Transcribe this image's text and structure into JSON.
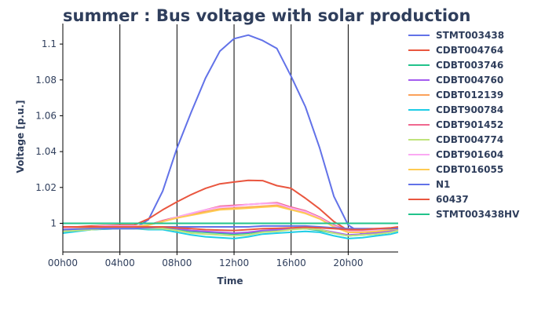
{
  "chart_data": {
    "type": "line",
    "title": "summer : Bus voltage with solar production",
    "xlabel": "Time",
    "ylabel": "Voltage [p.u.]",
    "x": [
      0,
      1,
      2,
      3,
      4,
      5,
      6,
      7,
      8,
      9,
      10,
      11,
      12,
      13,
      14,
      15,
      16,
      17,
      18,
      19,
      20,
      21,
      22,
      23,
      23.5
    ],
    "x_tick_values": [
      0,
      4,
      8,
      12,
      16,
      20
    ],
    "x_tick_labels": [
      "00h00",
      "04h00",
      "08h00",
      "12h00",
      "16h00",
      "20h00"
    ],
    "xlim": [
      0,
      23.5
    ],
    "y_tick_values": [
      1.0,
      1.02,
      1.04,
      1.06,
      1.08,
      1.1
    ],
    "y_tick_labels": [
      "1",
      "1.02",
      "1.04",
      "1.06",
      "1.08",
      "1.1"
    ],
    "ylim": [
      0.984,
      1.111
    ],
    "grid": "vertical",
    "legend_position": "right",
    "series": [
      {
        "name": "STMT003438",
        "color": "#6272e8",
        "values": [
          0.9965,
          0.9968,
          0.997,
          0.9972,
          0.9975,
          0.997,
          1.002,
          1.018,
          1.042,
          1.062,
          1.081,
          1.096,
          1.103,
          1.105,
          1.102,
          1.0975,
          1.082,
          1.065,
          1.042,
          1.015,
          0.999,
          0.994,
          0.995,
          0.996,
          0.997
        ]
      },
      {
        "name": "CDBT004764",
        "color": "#e9563f",
        "values": [
          0.9975,
          0.998,
          0.9985,
          0.9988,
          0.999,
          0.999,
          1.0025,
          1.0075,
          1.012,
          1.016,
          1.0195,
          1.022,
          1.023,
          1.024,
          1.0238,
          1.021,
          1.0195,
          1.014,
          1.008,
          1.001,
          0.996,
          0.9955,
          0.996,
          0.997,
          0.9975
        ]
      },
      {
        "name": "CDBT003746",
        "color": "#22c38b",
        "values": [
          0.9955,
          0.996,
          0.9965,
          0.9968,
          0.997,
          0.997,
          0.997,
          0.9975,
          0.9965,
          0.9955,
          0.995,
          0.9945,
          0.994,
          0.9945,
          0.9955,
          0.996,
          0.997,
          0.997,
          0.996,
          0.9945,
          0.993,
          0.9935,
          0.994,
          0.995,
          0.996
        ]
      },
      {
        "name": "CDBT004760",
        "color": "#a45cf0",
        "values": [
          0.996,
          0.9965,
          0.997,
          0.9972,
          0.9975,
          0.9975,
          0.9978,
          0.998,
          0.997,
          0.996,
          0.9955,
          0.995,
          0.9945,
          0.995,
          0.996,
          0.9965,
          0.997,
          0.997,
          0.9965,
          0.995,
          0.9935,
          0.994,
          0.9945,
          0.9955,
          0.9965
        ]
      },
      {
        "name": "CDBT012139",
        "color": "#fba15a",
        "values": [
          0.9965,
          0.997,
          0.9975,
          0.998,
          0.998,
          0.998,
          0.999,
          1.001,
          1.003,
          1.005,
          1.0065,
          1.008,
          1.0085,
          1.009,
          1.0095,
          1.01,
          1.008,
          1.006,
          1.003,
          0.998,
          0.995,
          0.995,
          0.9955,
          0.9965,
          0.997
        ]
      },
      {
        "name": "CDBT900784",
        "color": "#1ecde6",
        "values": [
          0.9945,
          0.9955,
          0.9965,
          0.9968,
          0.997,
          0.997,
          0.9965,
          0.9965,
          0.995,
          0.9935,
          0.9925,
          0.992,
          0.9915,
          0.9925,
          0.994,
          0.9945,
          0.995,
          0.9955,
          0.995,
          0.993,
          0.9915,
          0.992,
          0.993,
          0.994,
          0.995
        ]
      },
      {
        "name": "CDBT901452",
        "color": "#f0688f",
        "values": [
          0.997,
          0.9975,
          0.998,
          0.9985,
          0.9985,
          0.9985,
          0.999,
          1.0015,
          1.0035,
          1.0055,
          1.0075,
          1.0095,
          1.01,
          1.0105,
          1.011,
          1.0115,
          1.009,
          1.007,
          1.0035,
          0.999,
          0.996,
          0.996,
          0.9965,
          0.997,
          0.9975
        ]
      },
      {
        "name": "CDBT004774",
        "color": "#bfe37b",
        "values": [
          0.9955,
          0.996,
          0.9965,
          0.997,
          0.997,
          0.997,
          0.997,
          0.997,
          0.996,
          0.9945,
          0.994,
          0.9935,
          0.993,
          0.9935,
          0.995,
          0.9955,
          0.9965,
          0.997,
          0.9965,
          0.9945,
          0.993,
          0.9935,
          0.994,
          0.995,
          0.996
        ]
      },
      {
        "name": "CDBT901604",
        "color": "#fba9f3",
        "values": [
          0.997,
          0.9975,
          0.998,
          0.9985,
          0.9985,
          0.9985,
          0.999,
          1.001,
          1.0035,
          1.0055,
          1.0075,
          1.009,
          1.0095,
          1.0105,
          1.011,
          1.011,
          1.0085,
          1.0065,
          1.003,
          0.9985,
          0.9955,
          0.9955,
          0.996,
          0.997,
          0.9975
        ]
      },
      {
        "name": "CDBT016055",
        "color": "#fecb52",
        "values": [
          0.9965,
          0.997,
          0.9975,
          0.998,
          0.998,
          0.998,
          0.999,
          1.001,
          1.003,
          1.0045,
          1.006,
          1.0075,
          1.008,
          1.0085,
          1.009,
          1.0095,
          1.0075,
          1.0055,
          1.0025,
          0.998,
          0.995,
          0.995,
          0.9955,
          0.9965,
          0.997
        ]
      },
      {
        "name": "N1",
        "color": "#6272e8",
        "values": [
          0.9965,
          0.9968,
          0.997,
          0.997,
          0.997,
          0.997,
          0.9975,
          0.998,
          0.998,
          0.998,
          0.998,
          0.998,
          0.998,
          0.998,
          0.9985,
          0.9985,
          0.9985,
          0.9985,
          0.998,
          0.9975,
          0.997,
          0.997,
          0.997,
          0.997,
          0.9972
        ]
      },
      {
        "name": "60437",
        "color": "#e9563f",
        "values": [
          0.998,
          0.998,
          0.998,
          0.998,
          0.998,
          0.998,
          0.998,
          0.998,
          0.9975,
          0.997,
          0.9965,
          0.9962,
          0.996,
          0.9965,
          0.997,
          0.9972,
          0.9975,
          0.9978,
          0.9975,
          0.997,
          0.9965,
          0.9965,
          0.997,
          0.9975,
          0.998
        ]
      },
      {
        "name": "STMT003438HV",
        "color": "#22c38b",
        "values": [
          1.0,
          1.0,
          1.0,
          1.0,
          1.0,
          1.0,
          1.0,
          1.0,
          1.0,
          1.0,
          1.0,
          1.0,
          1.0,
          1.0,
          1.0,
          1.0,
          1.0,
          1.0,
          1.0,
          1.0,
          1.0,
          1.0,
          1.0,
          1.0,
          1.0
        ]
      }
    ]
  }
}
